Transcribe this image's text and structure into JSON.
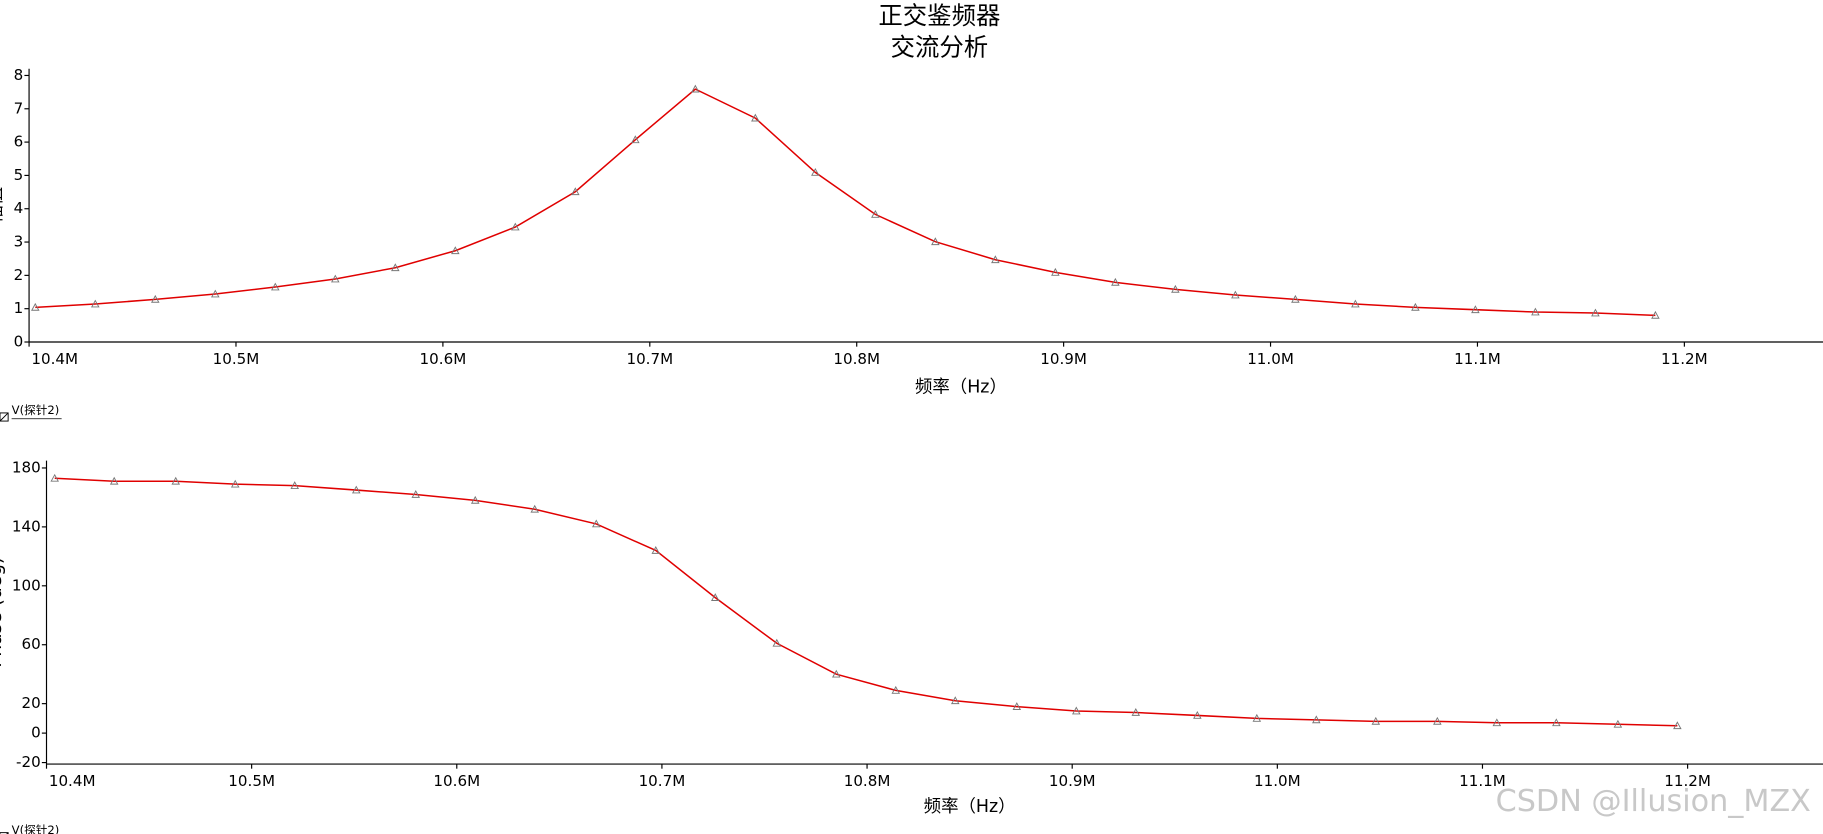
{
  "chart_data": [
    {
      "type": "line",
      "title": "正交鉴频器",
      "subtitle": "交流分析",
      "x_label": "频率（Hz）",
      "y_label": "幅值",
      "x": [
        10403000,
        10432000,
        10461000,
        10490000,
        10519000,
        10548000,
        10577000,
        10606000,
        10635000,
        10664000,
        10693000,
        10722000,
        10751000,
        10780000,
        10809000,
        10838000,
        10867000,
        10896000,
        10925000,
        10954000,
        10983000,
        11012000,
        11041000,
        11070000,
        11099000,
        11128000,
        11157000,
        11186000
      ],
      "series": [
        {
          "name": "V(探针2)",
          "color": "#e00000",
          "values": [
            1.04,
            1.14,
            1.28,
            1.44,
            1.65,
            1.89,
            2.23,
            2.74,
            3.45,
            4.51,
            6.07,
            7.59,
            6.72,
            5.09,
            3.83,
            3.01,
            2.47,
            2.09,
            1.79,
            1.58,
            1.41,
            1.28,
            1.14,
            1.04,
            0.97,
            0.9,
            0.87,
            0.8
          ]
        }
      ],
      "xlim": [
        10400000,
        11267000
      ],
      "xticks": [
        {
          "value": 10400000,
          "label": "10.4M"
        },
        {
          "value": 10500000,
          "label": "10.5M"
        },
        {
          "value": 10600000,
          "label": "10.6M"
        },
        {
          "value": 10700000,
          "label": "10.7M"
        },
        {
          "value": 10800000,
          "label": "10.8M"
        },
        {
          "value": 10900000,
          "label": "10.9M"
        },
        {
          "value": 11000000,
          "label": "11.0M"
        },
        {
          "value": 11100000,
          "label": "11.1M"
        },
        {
          "value": 11200000,
          "label": "11.2M"
        }
      ],
      "ylim": [
        0,
        8.2
      ],
      "yticks": [
        0,
        1,
        2,
        3,
        4,
        5,
        6,
        7,
        8
      ]
    },
    {
      "type": "line",
      "x_label": "频率（Hz）",
      "y_label": "Phase (deg)",
      "x": [
        10404000,
        10433000,
        10463000,
        10492000,
        10521000,
        10551000,
        10580000,
        10609000,
        10638000,
        10668000,
        10697000,
        10726000,
        10756000,
        10785000,
        10814000,
        10843000,
        10873000,
        10902000,
        10931000,
        10961000,
        10990000,
        11019000,
        11048000,
        11078000,
        11107000,
        11136000,
        11166000,
        11195000
      ],
      "series": [
        {
          "name": "V(探针2)",
          "color": "#e00000",
          "values": [
            173,
            171,
            171,
            169,
            168,
            165,
            162,
            158,
            152,
            142,
            124,
            92,
            61,
            40,
            29,
            22,
            18,
            15,
            14,
            12,
            10,
            9,
            8,
            8,
            7,
            7,
            6,
            5
          ]
        }
      ],
      "xlim": [
        10400000,
        11266000
      ],
      "xticks": [
        {
          "value": 10400000,
          "label": "10.4M"
        },
        {
          "value": 10500000,
          "label": "10.5M"
        },
        {
          "value": 10600000,
          "label": "10.6M"
        },
        {
          "value": 10700000,
          "label": "10.7M"
        },
        {
          "value": 10800000,
          "label": "10.8M"
        },
        {
          "value": 10900000,
          "label": "10.9M"
        },
        {
          "value": 11000000,
          "label": "11.0M"
        },
        {
          "value": 11100000,
          "label": "11.1M"
        },
        {
          "value": 11200000,
          "label": "11.2M"
        }
      ],
      "ylim": [
        -21,
        185
      ],
      "yticks": [
        -20,
        0,
        20,
        60,
        100,
        140,
        180
      ]
    }
  ],
  "watermark": "CSDN @Illusion_MZX"
}
